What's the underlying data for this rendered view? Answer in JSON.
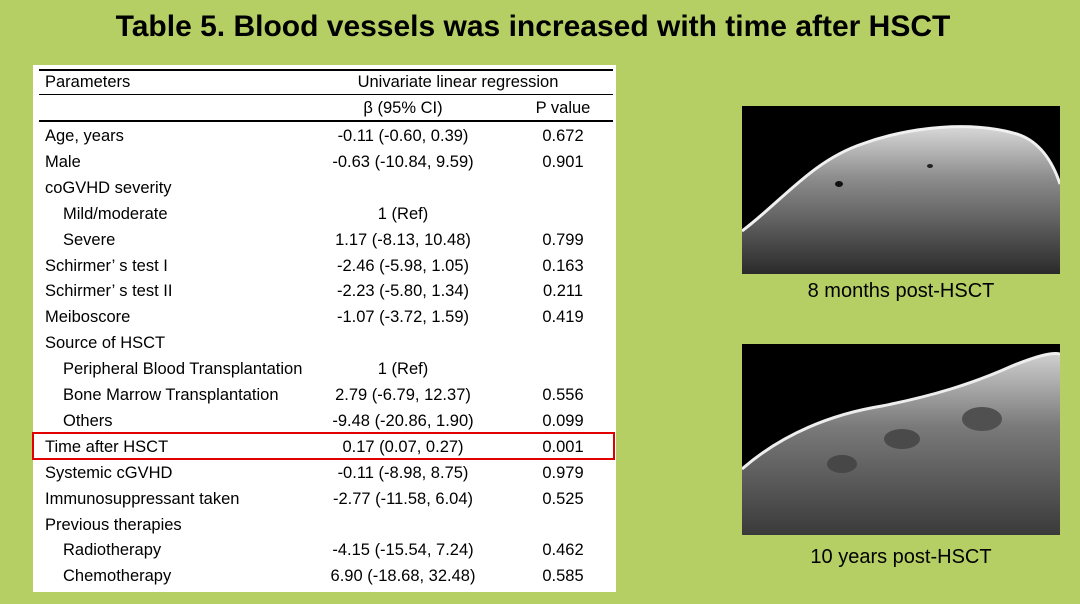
{
  "title": "Table 5. Blood vessels was increased with time after HSCT",
  "table": {
    "header": {
      "parameters": "Parameters",
      "regression": "Univariate linear regression",
      "beta": "β (95% CI)",
      "pvalue": "P value"
    },
    "rows": [
      {
        "param": "Age, years",
        "beta": "-0.11 (-0.60, 0.39)",
        "p": "0.672"
      },
      {
        "param": "Male",
        "beta": "-0.63 (-10.84, 9.59)",
        "p": "0.901"
      },
      {
        "param": "coGVHD severity",
        "beta": "",
        "p": ""
      },
      {
        "param": "Mild/moderate",
        "beta": "1 (Ref)",
        "p": ""
      },
      {
        "param": "Severe",
        "beta": "1.17 (-8.13, 10.48)",
        "p": "0.799"
      },
      {
        "param": "Schirmer’ s test I",
        "beta": "-2.46 (-5.98, 1.05)",
        "p": "0.163"
      },
      {
        "param": "Schirmer’ s test II",
        "beta": "-2.23 (-5.80, 1.34)",
        "p": "0.211"
      },
      {
        "param": "Meiboscore",
        "beta": "-1.07 (-3.72, 1.59)",
        "p": "0.419"
      },
      {
        "param": "Source of HSCT",
        "beta": "",
        "p": ""
      },
      {
        "param": "Peripheral Blood Transplantation",
        "beta": "1 (Ref)",
        "p": ""
      },
      {
        "param": "Bone Marrow Transplantation",
        "beta": "2.79 (-6.79, 12.37)",
        "p": "0.556"
      },
      {
        "param": "Others",
        "beta": "-9.48 (-20.86, 1.90)",
        "p": "0.099"
      },
      {
        "param": "Time after HSCT",
        "beta": "0.17 (0.07, 0.27)",
        "p": "0.001"
      },
      {
        "param": "Systemic cGVHD",
        "beta": "-0.11 (-8.98, 8.75)",
        "p": "0.979"
      },
      {
        "param": "Immunosuppressant taken",
        "beta": "-2.77 (-11.58, 6.04)",
        "p": "0.525"
      },
      {
        "param": "Previous therapies",
        "beta": "",
        "p": ""
      },
      {
        "param": "Radiotherapy",
        "beta": "-4.15 (-15.54, 7.24)",
        "p": "0.462"
      },
      {
        "param": "Chemotherapy",
        "beta": "6.90 (-18.68, 32.48)",
        "p": "0.585"
      }
    ]
  },
  "images": [
    {
      "caption": "8 months post-HSCT"
    },
    {
      "caption": "10 years post-HSCT"
    }
  ],
  "colors": {
    "background": "#b5cf64",
    "highlight": "#e00000"
  }
}
